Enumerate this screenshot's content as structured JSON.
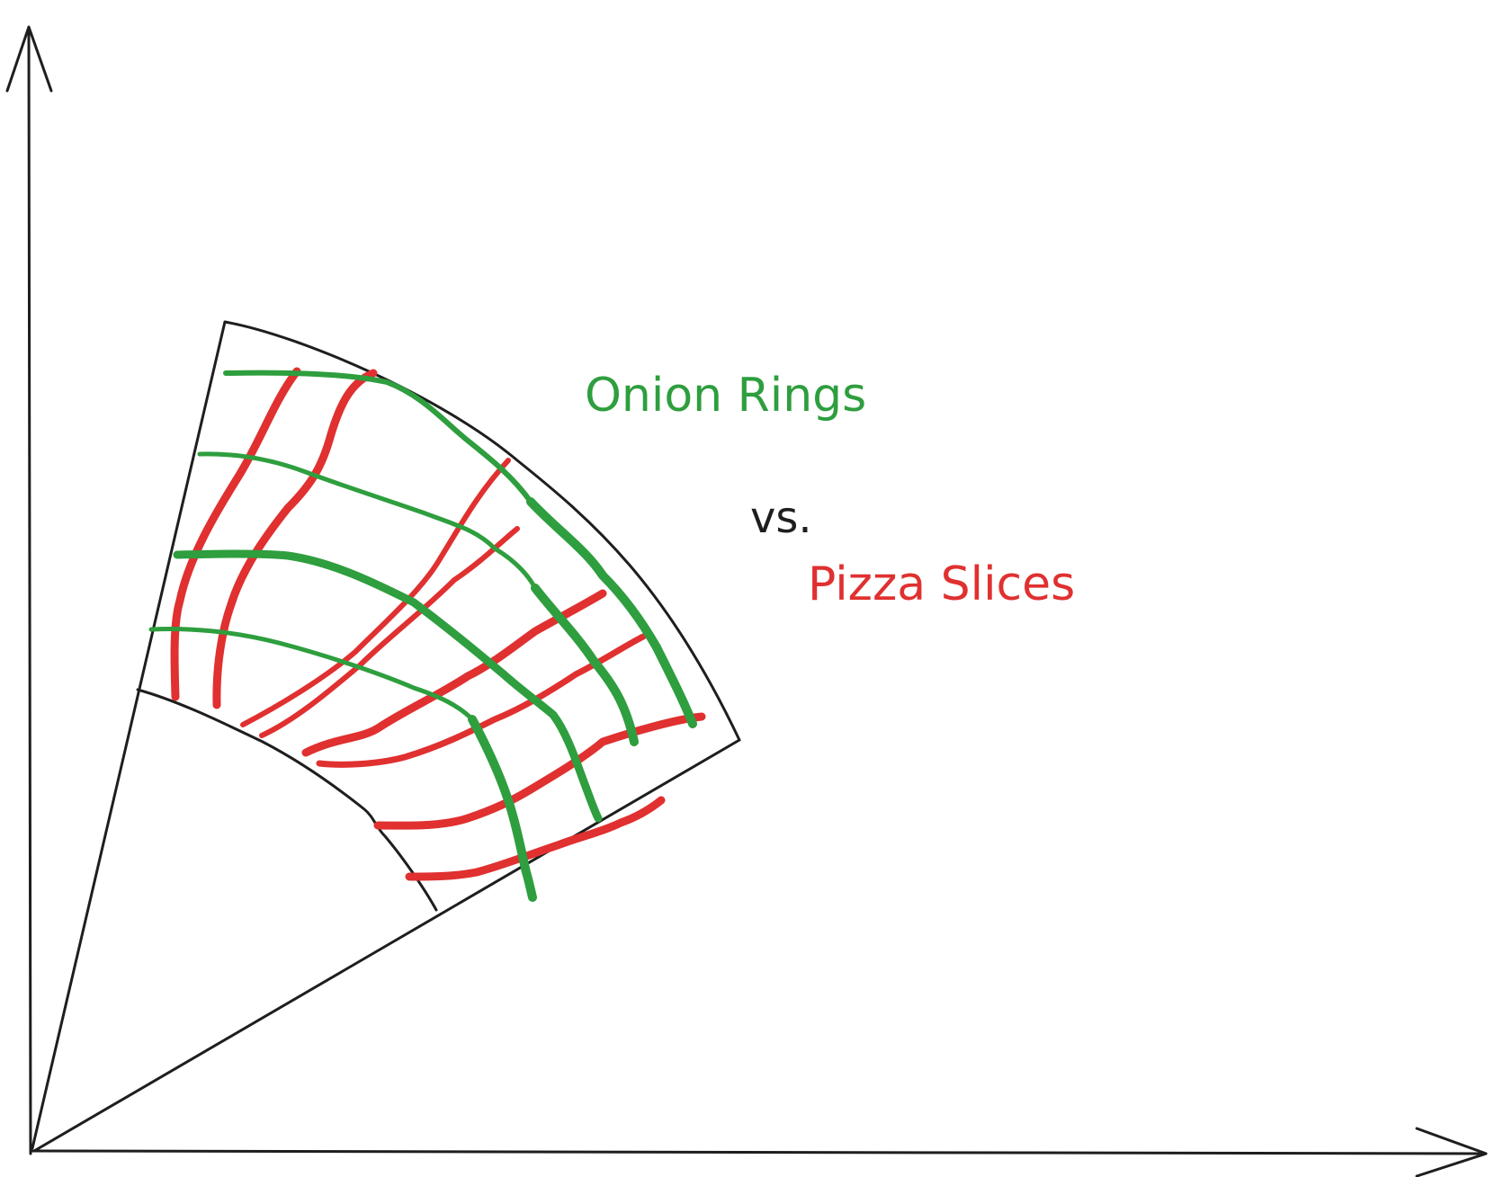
{
  "labels": {
    "onion": "Onion Rings",
    "vs": "vs.",
    "pizza": "Pizza Slices"
  },
  "colors": {
    "onion": "#2e9e3e",
    "pizza": "#e03030",
    "ink": "#1e1e1e"
  }
}
